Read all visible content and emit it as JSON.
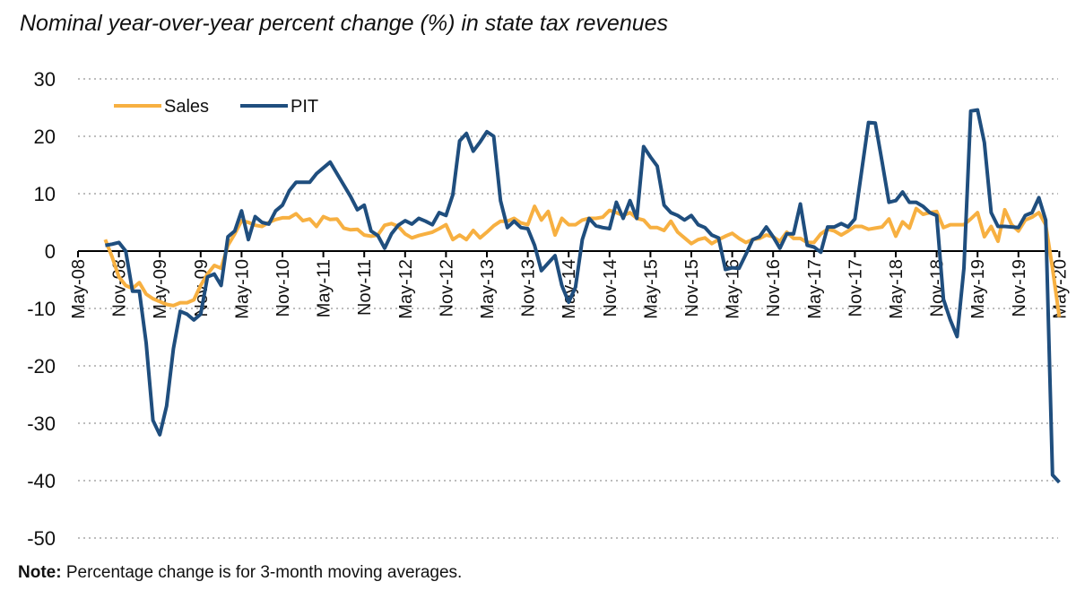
{
  "chart_data": {
    "type": "line",
    "title": "Nominal year-over-year percent change (%) in state tax revenues",
    "xlabel": "",
    "ylabel": "",
    "ylim": [
      -50,
      30
    ],
    "yticks": [
      "30",
      "20",
      "10",
      "0",
      "-10",
      "-20",
      "-30",
      "-40",
      "-50"
    ],
    "grid": "horizontal dotted",
    "legend": "top-left",
    "xtick_labels": [
      "May-08",
      "Nov-08",
      "May-09",
      "Nov-09",
      "May-10",
      "Nov-10",
      "May-11",
      "Nov-11",
      "May-12",
      "Nov-12",
      "May-13",
      "Nov-13",
      "May-14",
      "Nov-14",
      "May-15",
      "Nov-15",
      "May-16",
      "Nov-16",
      "May-17",
      "Nov-17",
      "May-18",
      "Nov-18",
      "May-19",
      "Nov-19",
      "May-20"
    ],
    "x": [
      "Sep-08",
      "Oct-08",
      "Nov-08",
      "Dec-08",
      "Jan-09",
      "Feb-09",
      "Mar-09",
      "Apr-09",
      "May-09",
      "Jun-09",
      "Jul-09",
      "Aug-09",
      "Sep-09",
      "Oct-09",
      "Nov-09",
      "Dec-09",
      "Jan-10",
      "Feb-10",
      "Mar-10",
      "Apr-10",
      "May-10",
      "Jun-10",
      "Jul-10",
      "Aug-10",
      "Sep-10",
      "Oct-10",
      "Nov-10",
      "Dec-10",
      "Jan-11",
      "Feb-11",
      "Mar-11",
      "Apr-11",
      "May-11",
      "Jun-11",
      "Jul-11",
      "Aug-11",
      "Sep-11",
      "Oct-11",
      "Nov-11",
      "Dec-11",
      "Jan-12",
      "Feb-12",
      "Mar-12",
      "Apr-12",
      "May-12",
      "Jun-12",
      "Jul-12",
      "Aug-12",
      "Sep-12",
      "Oct-12",
      "Nov-12",
      "Dec-12",
      "Jan-13",
      "Feb-13",
      "Mar-13",
      "Apr-13",
      "May-13",
      "Jun-13",
      "Jul-13",
      "Aug-13",
      "Sep-13",
      "Oct-13",
      "Nov-13",
      "Dec-13",
      "Jan-14",
      "Feb-14",
      "Mar-14",
      "Apr-14",
      "May-14",
      "Jun-14",
      "Jul-14",
      "Aug-14",
      "Sep-14",
      "Oct-14",
      "Nov-14",
      "Dec-14",
      "Jan-15",
      "Feb-15",
      "Mar-15",
      "Apr-15",
      "May-15",
      "Jun-15",
      "Jul-15",
      "Aug-15",
      "Sep-15",
      "Oct-15",
      "Nov-15",
      "Dec-15",
      "Jan-16",
      "Feb-16",
      "Mar-16",
      "Apr-16",
      "May-16",
      "Jun-16",
      "Jul-16",
      "Aug-16",
      "Sep-16",
      "Oct-16",
      "Nov-16",
      "Dec-16",
      "Jan-17",
      "Feb-17",
      "Mar-17",
      "Apr-17",
      "May-17",
      "Jun-17",
      "Jul-17",
      "Aug-17",
      "Sep-17",
      "Oct-17",
      "Nov-17",
      "Dec-17",
      "Jan-18",
      "Feb-18",
      "Mar-18",
      "Apr-18",
      "May-18",
      "Jun-18",
      "Jul-18",
      "Aug-18",
      "Sep-18",
      "Oct-18",
      "Nov-18",
      "Dec-18",
      "Jan-19",
      "Feb-19",
      "Mar-19",
      "Apr-19",
      "May-19",
      "Jun-19",
      "Jul-19",
      "Aug-19",
      "Sep-19",
      "Oct-19",
      "Nov-19",
      "Dec-19",
      "Jan-20",
      "Feb-20",
      "Mar-20",
      "Apr-20",
      "May-20"
    ],
    "series": [
      {
        "name": "Sales",
        "color": "#F7B041",
        "values": [
          2,
          -1,
          -4.5,
          -6,
          -6.5,
          -5.5,
          -7.5,
          -8.3,
          -8.8,
          -9.3,
          -9.5,
          -9,
          -9,
          -8.5,
          -6,
          -4,
          -2.5,
          -3,
          1,
          3,
          5.3,
          5,
          4.5,
          4.3,
          5,
          5.5,
          5.8,
          5.8,
          6.5,
          5.3,
          5.6,
          4.3,
          6,
          5.5,
          5.6,
          4,
          3.7,
          3.8,
          2.8,
          2.6,
          2.8,
          4.5,
          4.8,
          4.3,
          3,
          2.3,
          2.7,
          3,
          3.3,
          3.9,
          4.6,
          2,
          2.8,
          2,
          3.6,
          2.3,
          3.3,
          4.4,
          5.2,
          5.2,
          5.7,
          4.9,
          4.6,
          7.8,
          5.4,
          6.9,
          2.8,
          5.7,
          4.6,
          4.6,
          5.4,
          5.7,
          5.7,
          5.9,
          7.1,
          6.7,
          6.2,
          6.7,
          5.7,
          5.4,
          4.1,
          4.1,
          3.6,
          5.2,
          3.3,
          2.3,
          1.3,
          2,
          2.3,
          1.3,
          2,
          2.6,
          3.1,
          2.2,
          1.5,
          2,
          2.2,
          2.8,
          2.5,
          1.7,
          3.3,
          2.2,
          2.2,
          1.5,
          1.5,
          3,
          3.8,
          3.5,
          2.8,
          3.5,
          4.3,
          4.3,
          3.8,
          4,
          4.2,
          5.6,
          2.6,
          5.1,
          4,
          7.4,
          6.4,
          6.7,
          6.9,
          4.1,
          4.6,
          4.6,
          4.6,
          5.6,
          6.7,
          2.5,
          4.3,
          1.7,
          7.2,
          4.6,
          3.5,
          5.4,
          5.9,
          6.7,
          4.6,
          -3,
          -11.5
        ]
      },
      {
        "name": "PIT",
        "color": "#1F4E7E",
        "values": [
          1,
          1.2,
          1.5,
          0,
          -7,
          -7,
          -16,
          -29.5,
          -32,
          -27,
          -17,
          -10.5,
          -11,
          -12,
          -11,
          -4.5,
          -4,
          -6,
          2.5,
          3.5,
          7,
          2,
          6,
          5,
          4.7,
          7,
          8,
          10.5,
          12,
          12,
          12,
          13.5,
          14.5,
          15.5,
          13.5,
          11.5,
          9.5,
          7.2,
          8,
          3.5,
          2.7,
          0.5,
          3,
          4.5,
          5.3,
          4.7,
          5.7,
          5.2,
          4.6,
          6.7,
          6.2,
          9.8,
          19.2,
          20.5,
          17.4,
          19,
          20.8,
          20,
          8.8,
          4.1,
          5.2,
          4.1,
          3.9,
          1,
          -3.4,
          -2.1,
          -0.8,
          -6,
          -8.9,
          -6.3,
          2,
          5.7,
          4.4,
          4.1,
          3.9,
          8.5,
          5.7,
          8.8,
          5.7,
          18.2,
          16.4,
          14.8,
          8,
          6.7,
          6.2,
          5.4,
          6.2,
          4.6,
          4.1,
          2.8,
          2.3,
          -3.2,
          -2.9,
          -3,
          -0.6,
          2,
          2.5,
          4.2,
          2.5,
          0.5,
          3,
          3,
          8.2,
          1,
          0.7,
          -0.2,
          4.2,
          4.2,
          4.8,
          4.2,
          5.6,
          14,
          22.4,
          22.3,
          15.5,
          8.5,
          8.8,
          10.3,
          8.5,
          8.5,
          7.8,
          6.7,
          6.2,
          -8.4,
          -12,
          -14.9,
          -3,
          24.4,
          24.6,
          18.9,
          6.7,
          4.3,
          4.3,
          4.2,
          4.1,
          6.2,
          6.7,
          9.3,
          5.4,
          -39,
          -40.3
        ]
      }
    ]
  },
  "note": {
    "label": "Note:",
    "text": " Percentage change is for 3-month moving averages."
  }
}
